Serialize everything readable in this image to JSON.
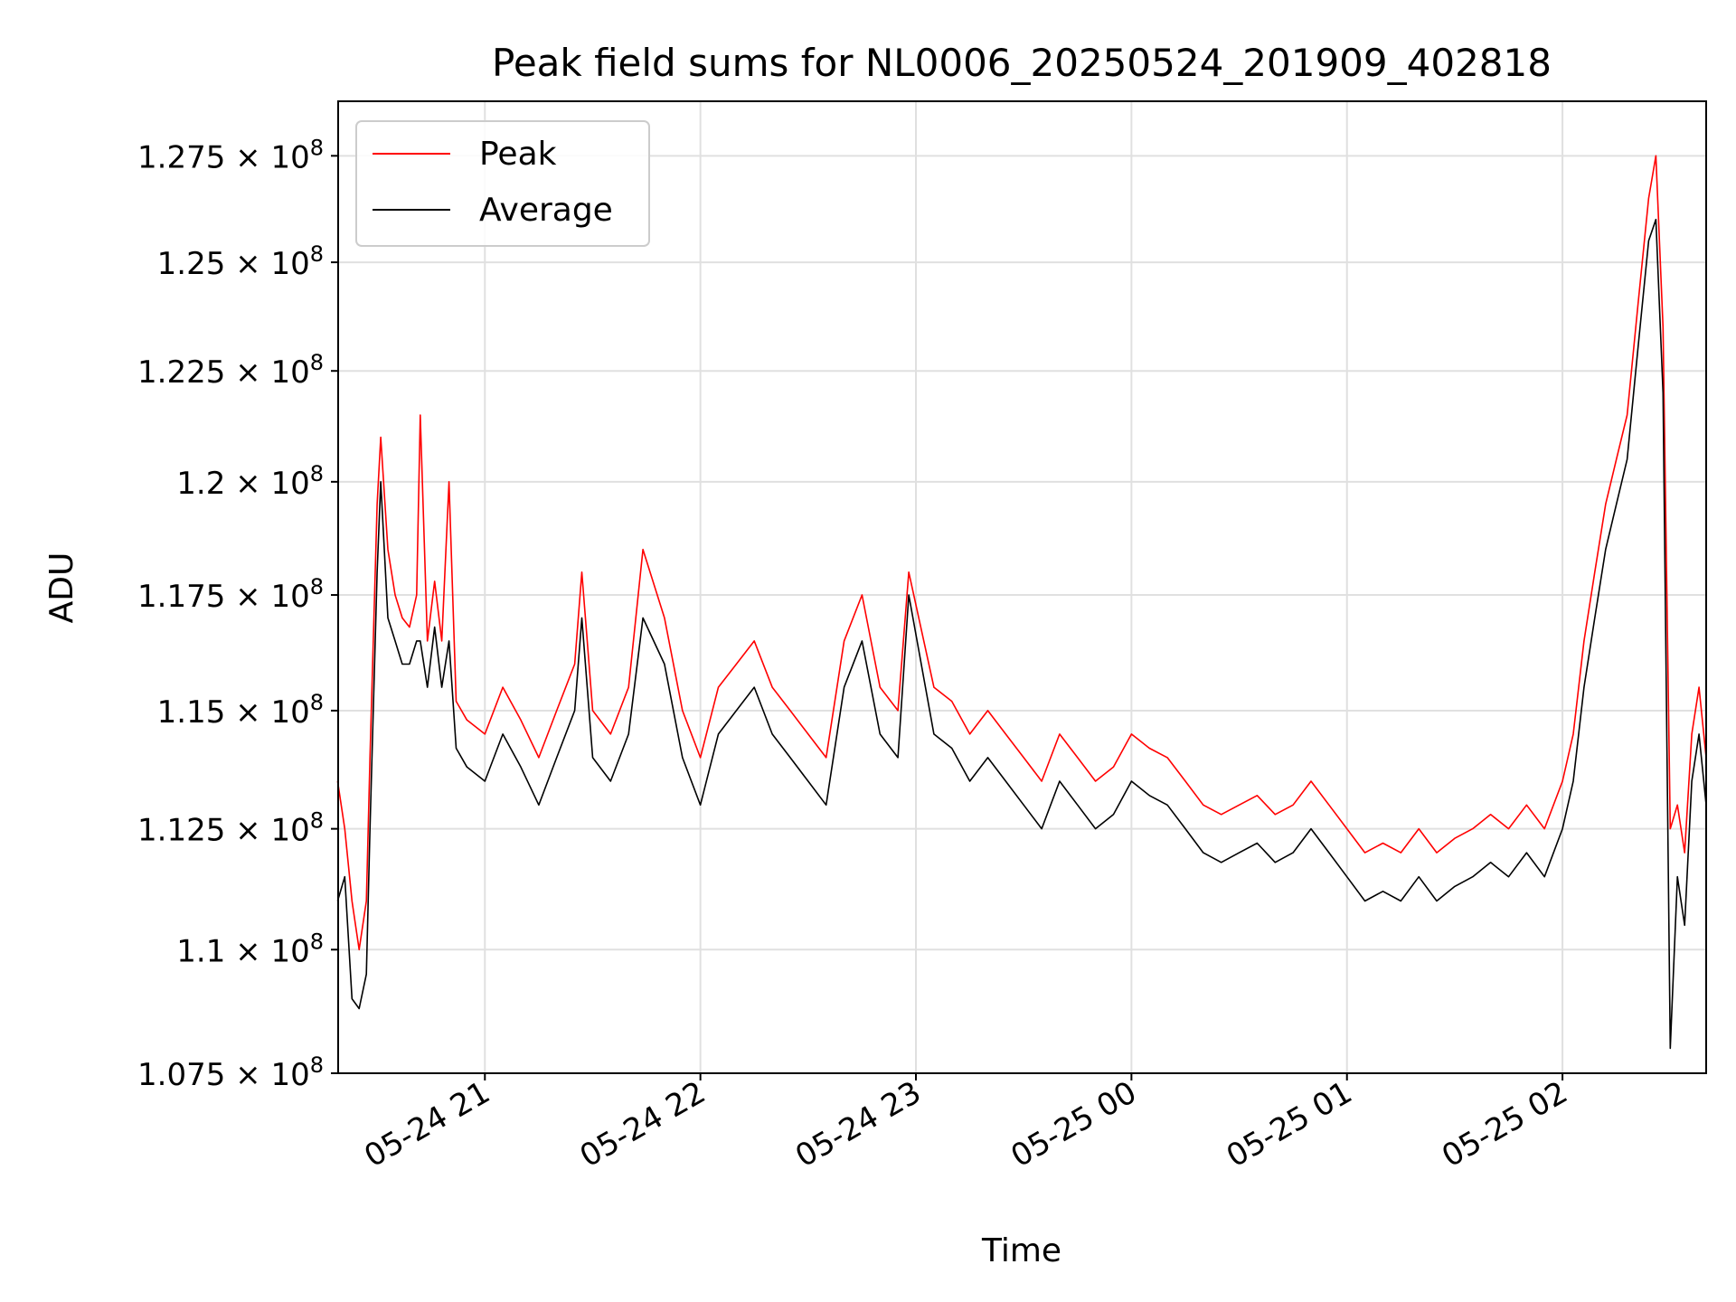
{
  "chart_data": {
    "type": "line",
    "title": "Peak field sums for NL0006_20250524_201909_402818",
    "xlabel": "Time",
    "ylabel": "ADU",
    "y_scale": "log",
    "ylim": [
      107500000,
      128800000
    ],
    "xlim": [
      "2025-05-24T20:19:09",
      "2025-05-25T02:40:00"
    ],
    "grid": true,
    "legend_position": "upper left",
    "x_ticks": [
      {
        "t": "2025-05-24T21:00",
        "label": "05-24 21"
      },
      {
        "t": "2025-05-24T22:00",
        "label": "05-24 22"
      },
      {
        "t": "2025-05-24T23:00",
        "label": "05-24 23"
      },
      {
        "t": "2025-05-25T00:00",
        "label": "05-25 00"
      },
      {
        "t": "2025-05-25T01:00",
        "label": "05-25 01"
      },
      {
        "t": "2025-05-25T02:00",
        "label": "05-25 02"
      }
    ],
    "y_ticks": [
      {
        "value": 107500000,
        "mantissa": "1.075"
      },
      {
        "value": 110000000,
        "mantissa": "1.1"
      },
      {
        "value": 112500000,
        "mantissa": "1.125"
      },
      {
        "value": 115000000,
        "mantissa": "1.15"
      },
      {
        "value": 117500000,
        "mantissa": "1.175"
      },
      {
        "value": 120000000,
        "mantissa": "1.2"
      },
      {
        "value": 122500000,
        "mantissa": "1.225"
      },
      {
        "value": 125000000,
        "mantissa": "1.25"
      },
      {
        "value": 127500000,
        "mantissa": "1.275"
      }
    ],
    "y_tick_exponent": "8",
    "series": [
      {
        "name": "Peak",
        "color": "#ff0000",
        "points": [
          [
            "2025-05-24T20:19",
            113500000.0
          ],
          [
            "2025-05-24T20:21",
            112500000.0
          ],
          [
            "2025-05-24T20:23",
            111000000.0
          ],
          [
            "2025-05-24T20:25",
            110000000.0
          ],
          [
            "2025-05-24T20:27",
            111000000.0
          ],
          [
            "2025-05-24T20:28",
            114000000.0
          ],
          [
            "2025-05-24T20:30",
            119500000.0
          ],
          [
            "2025-05-24T20:31",
            121000000.0
          ],
          [
            "2025-05-24T20:33",
            118500000.0
          ],
          [
            "2025-05-24T20:35",
            117500000.0
          ],
          [
            "2025-05-24T20:37",
            117000000.0
          ],
          [
            "2025-05-24T20:39",
            116800000.0
          ],
          [
            "2025-05-24T20:41",
            117500000.0
          ],
          [
            "2025-05-24T20:42",
            121500000.0
          ],
          [
            "2025-05-24T20:44",
            116500000.0
          ],
          [
            "2025-05-24T20:46",
            117800000.0
          ],
          [
            "2025-05-24T20:48",
            116500000.0
          ],
          [
            "2025-05-24T20:50",
            120000000.0
          ],
          [
            "2025-05-24T20:52",
            115200000.0
          ],
          [
            "2025-05-24T20:55",
            114800000.0
          ],
          [
            "2025-05-24T21:00",
            114500000.0
          ],
          [
            "2025-05-24T21:05",
            115500000.0
          ],
          [
            "2025-05-24T21:10",
            114800000.0
          ],
          [
            "2025-05-24T21:15",
            114000000.0
          ],
          [
            "2025-05-24T21:20",
            115000000.0
          ],
          [
            "2025-05-24T21:25",
            116000000.0
          ],
          [
            "2025-05-24T21:27",
            118000000.0
          ],
          [
            "2025-05-24T21:30",
            115000000.0
          ],
          [
            "2025-05-24T21:35",
            114500000.0
          ],
          [
            "2025-05-24T21:40",
            115500000.0
          ],
          [
            "2025-05-24T21:44",
            118500000.0
          ],
          [
            "2025-05-24T21:50",
            117000000.0
          ],
          [
            "2025-05-24T21:55",
            115000000.0
          ],
          [
            "2025-05-24T22:00",
            114000000.0
          ],
          [
            "2025-05-24T22:05",
            115500000.0
          ],
          [
            "2025-05-24T22:10",
            116000000.0
          ],
          [
            "2025-05-24T22:15",
            116500000.0
          ],
          [
            "2025-05-24T22:20",
            115500000.0
          ],
          [
            "2025-05-24T22:25",
            115000000.0
          ],
          [
            "2025-05-24T22:30",
            114500000.0
          ],
          [
            "2025-05-24T22:35",
            114000000.0
          ],
          [
            "2025-05-24T22:40",
            116500000.0
          ],
          [
            "2025-05-24T22:45",
            117500000.0
          ],
          [
            "2025-05-24T22:50",
            115500000.0
          ],
          [
            "2025-05-24T22:55",
            115000000.0
          ],
          [
            "2025-05-24T22:58",
            118000000.0
          ],
          [
            "2025-05-24T23:05",
            115500000.0
          ],
          [
            "2025-05-24T23:10",
            115200000.0
          ],
          [
            "2025-05-24T23:15",
            114500000.0
          ],
          [
            "2025-05-24T23:20",
            115000000.0
          ],
          [
            "2025-05-24T23:25",
            114500000.0
          ],
          [
            "2025-05-24T23:30",
            114000000.0
          ],
          [
            "2025-05-24T23:35",
            113500000.0
          ],
          [
            "2025-05-24T23:40",
            114500000.0
          ],
          [
            "2025-05-24T23:45",
            114000000.0
          ],
          [
            "2025-05-24T23:50",
            113500000.0
          ],
          [
            "2025-05-24T23:55",
            113800000.0
          ],
          [
            "2025-05-25T00:00",
            114500000.0
          ],
          [
            "2025-05-25T00:05",
            114200000.0
          ],
          [
            "2025-05-25T00:10",
            114000000.0
          ],
          [
            "2025-05-25T00:15",
            113500000.0
          ],
          [
            "2025-05-25T00:20",
            113000000.0
          ],
          [
            "2025-05-25T00:25",
            112800000.0
          ],
          [
            "2025-05-25T00:30",
            113000000.0
          ],
          [
            "2025-05-25T00:35",
            113200000.0
          ],
          [
            "2025-05-25T00:40",
            112800000.0
          ],
          [
            "2025-05-25T00:45",
            113000000.0
          ],
          [
            "2025-05-25T00:50",
            113500000.0
          ],
          [
            "2025-05-25T00:55",
            113000000.0
          ],
          [
            "2025-05-25T01:00",
            112500000.0
          ],
          [
            "2025-05-25T01:05",
            112000000.0
          ],
          [
            "2025-05-25T01:10",
            112200000.0
          ],
          [
            "2025-05-25T01:15",
            112000000.0
          ],
          [
            "2025-05-25T01:20",
            112500000.0
          ],
          [
            "2025-05-25T01:25",
            112000000.0
          ],
          [
            "2025-05-25T01:30",
            112300000.0
          ],
          [
            "2025-05-25T01:35",
            112500000.0
          ],
          [
            "2025-05-25T01:40",
            112800000.0
          ],
          [
            "2025-05-25T01:45",
            112500000.0
          ],
          [
            "2025-05-25T01:50",
            113000000.0
          ],
          [
            "2025-05-25T01:55",
            112500000.0
          ],
          [
            "2025-05-25T02:00",
            113500000.0
          ],
          [
            "2025-05-25T02:03",
            114500000.0
          ],
          [
            "2025-05-25T02:06",
            116500000.0
          ],
          [
            "2025-05-25T02:09",
            118000000.0
          ],
          [
            "2025-05-25T02:12",
            119500000.0
          ],
          [
            "2025-05-25T02:15",
            120500000.0
          ],
          [
            "2025-05-25T02:18",
            121500000.0
          ],
          [
            "2025-05-25T02:21",
            124000000.0
          ],
          [
            "2025-05-25T02:24",
            126500000.0
          ],
          [
            "2025-05-25T02:26",
            127500000.0
          ],
          [
            "2025-05-25T02:28",
            123500000.0
          ],
          [
            "2025-05-25T02:30",
            112500000.0
          ],
          [
            "2025-05-25T02:32",
            113000000.0
          ],
          [
            "2025-05-25T02:34",
            112000000.0
          ],
          [
            "2025-05-25T02:36",
            114500000.0
          ],
          [
            "2025-05-25T02:38",
            115500000.0
          ],
          [
            "2025-05-25T02:40",
            114000000.0
          ]
        ]
      },
      {
        "name": "Average",
        "color": "#000000",
        "points": [
          [
            "2025-05-24T20:19",
            111000000.0
          ],
          [
            "2025-05-24T20:21",
            111500000.0
          ],
          [
            "2025-05-24T20:23",
            109000000.0
          ],
          [
            "2025-05-24T20:25",
            108800000.0
          ],
          [
            "2025-05-24T20:27",
            109500000.0
          ],
          [
            "2025-05-24T20:28",
            112500000.0
          ],
          [
            "2025-05-24T20:30",
            118000000.0
          ],
          [
            "2025-05-24T20:31",
            120000000.0
          ],
          [
            "2025-05-24T20:33",
            117000000.0
          ],
          [
            "2025-05-24T20:35",
            116500000.0
          ],
          [
            "2025-05-24T20:37",
            116000000.0
          ],
          [
            "2025-05-24T20:39",
            116000000.0
          ],
          [
            "2025-05-24T20:41",
            116500000.0
          ],
          [
            "2025-05-24T20:42",
            116500000.0
          ],
          [
            "2025-05-24T20:44",
            115500000.0
          ],
          [
            "2025-05-24T20:46",
            116800000.0
          ],
          [
            "2025-05-24T20:48",
            115500000.0
          ],
          [
            "2025-05-24T20:50",
            116500000.0
          ],
          [
            "2025-05-24T20:52",
            114200000.0
          ],
          [
            "2025-05-24T20:55",
            113800000.0
          ],
          [
            "2025-05-24T21:00",
            113500000.0
          ],
          [
            "2025-05-24T21:05",
            114500000.0
          ],
          [
            "2025-05-24T21:10",
            113800000.0
          ],
          [
            "2025-05-24T21:15",
            113000000.0
          ],
          [
            "2025-05-24T21:20",
            114000000.0
          ],
          [
            "2025-05-24T21:25",
            115000000.0
          ],
          [
            "2025-05-24T21:27",
            117000000.0
          ],
          [
            "2025-05-24T21:30",
            114000000.0
          ],
          [
            "2025-05-24T21:35",
            113500000.0
          ],
          [
            "2025-05-24T21:40",
            114500000.0
          ],
          [
            "2025-05-24T21:44",
            117000000.0
          ],
          [
            "2025-05-24T21:50",
            116000000.0
          ],
          [
            "2025-05-24T21:55",
            114000000.0
          ],
          [
            "2025-05-24T22:00",
            113000000.0
          ],
          [
            "2025-05-24T22:05",
            114500000.0
          ],
          [
            "2025-05-24T22:10",
            115000000.0
          ],
          [
            "2025-05-24T22:15",
            115500000.0
          ],
          [
            "2025-05-24T22:20",
            114500000.0
          ],
          [
            "2025-05-24T22:25",
            114000000.0
          ],
          [
            "2025-05-24T22:30",
            113500000.0
          ],
          [
            "2025-05-24T22:35",
            113000000.0
          ],
          [
            "2025-05-24T22:40",
            115500000.0
          ],
          [
            "2025-05-24T22:45",
            116500000.0
          ],
          [
            "2025-05-24T22:50",
            114500000.0
          ],
          [
            "2025-05-24T22:55",
            114000000.0
          ],
          [
            "2025-05-24T22:58",
            117500000.0
          ],
          [
            "2025-05-24T23:05",
            114500000.0
          ],
          [
            "2025-05-24T23:10",
            114200000.0
          ],
          [
            "2025-05-24T23:15",
            113500000.0
          ],
          [
            "2025-05-24T23:20",
            114000000.0
          ],
          [
            "2025-05-24T23:25",
            113500000.0
          ],
          [
            "2025-05-24T23:30",
            113000000.0
          ],
          [
            "2025-05-24T23:35",
            112500000.0
          ],
          [
            "2025-05-24T23:40",
            113500000.0
          ],
          [
            "2025-05-24T23:45",
            113000000.0
          ],
          [
            "2025-05-24T23:50",
            112500000.0
          ],
          [
            "2025-05-24T23:55",
            112800000.0
          ],
          [
            "2025-05-25T00:00",
            113500000.0
          ],
          [
            "2025-05-25T00:05",
            113200000.0
          ],
          [
            "2025-05-25T00:10",
            113000000.0
          ],
          [
            "2025-05-25T00:15",
            112500000.0
          ],
          [
            "2025-05-25T00:20",
            112000000.0
          ],
          [
            "2025-05-25T00:25",
            111800000.0
          ],
          [
            "2025-05-25T00:30",
            112000000.0
          ],
          [
            "2025-05-25T00:35",
            112200000.0
          ],
          [
            "2025-05-25T00:40",
            111800000.0
          ],
          [
            "2025-05-25T00:45",
            112000000.0
          ],
          [
            "2025-05-25T00:50",
            112500000.0
          ],
          [
            "2025-05-25T00:55",
            112000000.0
          ],
          [
            "2025-05-25T01:00",
            111500000.0
          ],
          [
            "2025-05-25T01:05",
            111000000.0
          ],
          [
            "2025-05-25T01:10",
            111200000.0
          ],
          [
            "2025-05-25T01:15",
            111000000.0
          ],
          [
            "2025-05-25T01:20",
            111500000.0
          ],
          [
            "2025-05-25T01:25",
            111000000.0
          ],
          [
            "2025-05-25T01:30",
            111300000.0
          ],
          [
            "2025-05-25T01:35",
            111500000.0
          ],
          [
            "2025-05-25T01:40",
            111800000.0
          ],
          [
            "2025-05-25T01:45",
            111500000.0
          ],
          [
            "2025-05-25T01:50",
            112000000.0
          ],
          [
            "2025-05-25T01:55",
            111500000.0
          ],
          [
            "2025-05-25T02:00",
            112500000.0
          ],
          [
            "2025-05-25T02:03",
            113500000.0
          ],
          [
            "2025-05-25T02:06",
            115500000.0
          ],
          [
            "2025-05-25T02:09",
            117000000.0
          ],
          [
            "2025-05-25T02:12",
            118500000.0
          ],
          [
            "2025-05-25T02:15",
            119500000.0
          ],
          [
            "2025-05-25T02:18",
            120500000.0
          ],
          [
            "2025-05-25T02:21",
            123000000.0
          ],
          [
            "2025-05-25T02:24",
            125500000.0
          ],
          [
            "2025-05-25T02:26",
            126000000.0
          ],
          [
            "2025-05-25T02:28",
            122000000.0
          ],
          [
            "2025-05-25T02:30",
            108000000.0
          ],
          [
            "2025-05-25T02:32",
            111500000.0
          ],
          [
            "2025-05-25T02:34",
            110500000.0
          ],
          [
            "2025-05-25T02:36",
            113500000.0
          ],
          [
            "2025-05-25T02:38",
            114500000.0
          ],
          [
            "2025-05-25T02:40",
            113000000.0
          ]
        ]
      }
    ]
  }
}
